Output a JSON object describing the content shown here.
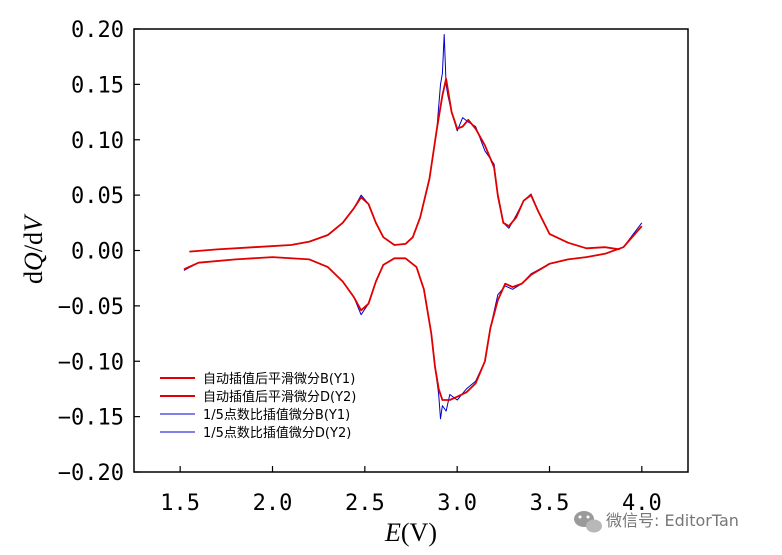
{
  "chart_data": {
    "type": "line",
    "xlabel_var": "E",
    "xlabel_unit": "(V)",
    "ylabel_parts": [
      "d",
      "Q",
      "/d",
      "V"
    ],
    "xlim": [
      1.25,
      4.25
    ],
    "ylim": [
      -0.2,
      0.2
    ],
    "xticks": [
      1.5,
      2.0,
      2.5,
      3.0,
      3.5,
      4.0
    ],
    "yticks": [
      0.2,
      0.15,
      0.1,
      0.05,
      0.0,
      -0.05,
      -0.1,
      -0.15,
      -0.2
    ],
    "xtick_labels": [
      "1.5",
      "2.0",
      "2.5",
      "3.0",
      "3.5",
      "4.0"
    ],
    "ytick_labels": [
      "0.20",
      "0.15",
      "0.10",
      "0.05",
      "0.00",
      "−0.05",
      "−0.10",
      "−0.15",
      "−0.20"
    ],
    "grid": false,
    "legend_position": "bottom-left",
    "series": [
      {
        "name": "自动插值后平滑微分B(Y1)",
        "color": "#e00000",
        "x": [
          1.55,
          1.7,
          1.9,
          2.1,
          2.2,
          2.3,
          2.38,
          2.44,
          2.48,
          2.52,
          2.56,
          2.6,
          2.66,
          2.72,
          2.76,
          2.8,
          2.85,
          2.89,
          2.92,
          2.94,
          2.97,
          3.0,
          3.03,
          3.06,
          3.1,
          3.15,
          3.2,
          3.22,
          3.25,
          3.28,
          3.32,
          3.36,
          3.4,
          3.44,
          3.5,
          3.6,
          3.7,
          3.8,
          3.88
        ],
        "y": [
          -0.001,
          0.001,
          0.003,
          0.005,
          0.008,
          0.014,
          0.025,
          0.038,
          0.048,
          0.042,
          0.025,
          0.012,
          0.005,
          0.006,
          0.012,
          0.03,
          0.065,
          0.11,
          0.14,
          0.155,
          0.125,
          0.11,
          0.112,
          0.118,
          0.11,
          0.095,
          0.075,
          0.05,
          0.025,
          0.022,
          0.03,
          0.045,
          0.05,
          0.035,
          0.015,
          0.007,
          0.002,
          0.003,
          0.001
        ]
      },
      {
        "name": "自动插值后平滑微分D(Y2)",
        "color": "#e00000",
        "x": [
          1.52,
          1.6,
          1.8,
          2.0,
          2.2,
          2.3,
          2.38,
          2.44,
          2.48,
          2.52,
          2.56,
          2.6,
          2.66,
          2.72,
          2.78,
          2.82,
          2.86,
          2.88,
          2.9,
          2.92,
          2.96,
          3.0,
          3.05,
          3.1,
          3.15,
          3.18,
          3.22,
          3.26,
          3.3,
          3.35,
          3.4,
          3.5,
          3.6,
          3.7,
          3.8,
          3.9,
          4.0
        ],
        "y": [
          -0.017,
          -0.011,
          -0.008,
          -0.006,
          -0.008,
          -0.015,
          -0.028,
          -0.042,
          -0.054,
          -0.048,
          -0.028,
          -0.013,
          -0.007,
          -0.007,
          -0.015,
          -0.035,
          -0.075,
          -0.105,
          -0.125,
          -0.135,
          -0.135,
          -0.132,
          -0.128,
          -0.12,
          -0.1,
          -0.07,
          -0.045,
          -0.03,
          -0.033,
          -0.03,
          -0.022,
          -0.012,
          -0.008,
          -0.006,
          -0.003,
          0.003,
          0.022
        ]
      },
      {
        "name": "1/5点数比插值微分B(Y1)",
        "color": "#0000d0",
        "x": [
          1.55,
          1.7,
          1.9,
          2.1,
          2.2,
          2.3,
          2.38,
          2.44,
          2.48,
          2.52,
          2.56,
          2.6,
          2.66,
          2.72,
          2.76,
          2.8,
          2.85,
          2.89,
          2.91,
          2.92,
          2.93,
          2.94,
          2.95,
          2.97,
          3.0,
          3.03,
          3.06,
          3.1,
          3.15,
          3.2,
          3.22,
          3.25,
          3.28,
          3.32,
          3.36,
          3.4,
          3.44,
          3.5,
          3.6,
          3.7,
          3.8,
          3.88
        ],
        "y": [
          -0.001,
          0.001,
          0.003,
          0.005,
          0.008,
          0.014,
          0.025,
          0.038,
          0.05,
          0.042,
          0.025,
          0.012,
          0.005,
          0.006,
          0.012,
          0.03,
          0.065,
          0.11,
          0.15,
          0.16,
          0.195,
          0.15,
          0.14,
          0.125,
          0.108,
          0.12,
          0.116,
          0.112,
          0.09,
          0.078,
          0.048,
          0.025,
          0.02,
          0.032,
          0.045,
          0.051,
          0.035,
          0.015,
          0.007,
          0.002,
          0.003,
          0.001
        ]
      },
      {
        "name": "1/5点数比插值微分D(Y2)",
        "color": "#0000d0",
        "x": [
          1.52,
          1.6,
          1.8,
          2.0,
          2.2,
          2.3,
          2.38,
          2.44,
          2.48,
          2.52,
          2.56,
          2.6,
          2.66,
          2.72,
          2.78,
          2.82,
          2.86,
          2.88,
          2.9,
          2.91,
          2.92,
          2.94,
          2.96,
          3.0,
          3.05,
          3.1,
          3.15,
          3.18,
          3.2,
          3.22,
          3.26,
          3.3,
          3.35,
          3.4,
          3.5,
          3.6,
          3.7,
          3.8,
          3.9,
          4.0
        ],
        "y": [
          -0.018,
          -0.011,
          -0.008,
          -0.006,
          -0.008,
          -0.015,
          -0.028,
          -0.042,
          -0.058,
          -0.048,
          -0.028,
          -0.013,
          -0.007,
          -0.007,
          -0.015,
          -0.035,
          -0.075,
          -0.105,
          -0.13,
          -0.152,
          -0.14,
          -0.145,
          -0.13,
          -0.135,
          -0.125,
          -0.118,
          -0.1,
          -0.07,
          -0.055,
          -0.04,
          -0.032,
          -0.035,
          -0.03,
          -0.021,
          -0.012,
          -0.008,
          -0.006,
          -0.003,
          0.003,
          0.025
        ]
      }
    ]
  },
  "watermark": {
    "icon": "wechat-icon",
    "text": "微信号: EditorTan"
  }
}
